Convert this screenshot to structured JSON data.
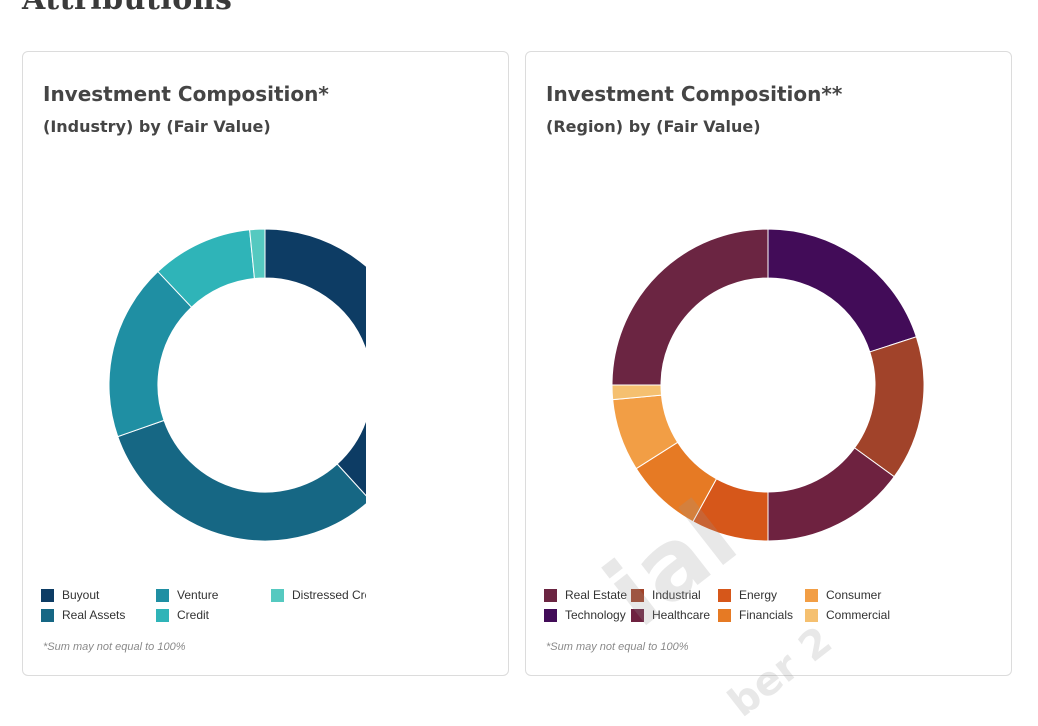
{
  "page": {
    "title": "Attributions"
  },
  "watermark": {
    "large": "ial",
    "small": "ber 2"
  },
  "chart_data": [
    {
      "type": "pie",
      "donut": true,
      "title": "Investment Composition*",
      "subtitle": "(Industry) by (Fair Value)",
      "footnote": "*Sum may not equal to 100%",
      "legend_position": "bottom",
      "series": [
        {
          "name": "Buyout",
          "value": 36.5,
          "color": "#0d3c64"
        },
        {
          "name": "Real Assets",
          "value": 30.0,
          "color": "#166784"
        },
        {
          "name": "Venture",
          "value": 17.5,
          "color": "#1f8fa3"
        },
        {
          "name": "Credit",
          "value": 10.0,
          "color": "#2fb4b8"
        },
        {
          "name": "Distressed Credit",
          "value": 1.5,
          "color": "#55c9c0"
        }
      ],
      "legend": [
        {
          "label": "Buyout",
          "color": "#0d3c64"
        },
        {
          "label": "Venture",
          "color": "#1f8fa3"
        },
        {
          "label": "Distressed Credit",
          "color": "#55c9c0"
        },
        {
          "label": "Real Assets",
          "color": "#166784"
        },
        {
          "label": "Credit",
          "color": "#2fb4b8"
        }
      ]
    },
    {
      "type": "pie",
      "donut": true,
      "title": "Investment Composition**",
      "subtitle": "(Region) by (Fair Value)",
      "footnote": "*Sum may not equal to 100%",
      "legend_position": "bottom",
      "series": [
        {
          "name": "Technology",
          "value": 20.0,
          "color": "#420c58"
        },
        {
          "name": "Industrial",
          "value": 15.0,
          "color": "#a1432a"
        },
        {
          "name": "Healthcare",
          "value": 15.0,
          "color": "#6e2240"
        },
        {
          "name": "Energy",
          "value": 8.0,
          "color": "#d6571a"
        },
        {
          "name": "Financials",
          "value": 8.0,
          "color": "#e67a24"
        },
        {
          "name": "Consumer",
          "value": 7.5,
          "color": "#f29e45"
        },
        {
          "name": "Commercial",
          "value": 1.5,
          "color": "#f5c070"
        },
        {
          "name": "Real Estate",
          "value": 25.0,
          "color": "#6b2542"
        }
      ],
      "legend": [
        {
          "label": "Real Estate",
          "color": "#6b2542"
        },
        {
          "label": "Industrial",
          "color": "#a1432a"
        },
        {
          "label": "Energy",
          "color": "#d6571a"
        },
        {
          "label": "Consumer",
          "color": "#f29e45"
        },
        {
          "label": "Technology",
          "color": "#420c58"
        },
        {
          "label": "Healthcare",
          "color": "#6e2240"
        },
        {
          "label": "Financials",
          "color": "#e67a24"
        },
        {
          "label": "Commercial",
          "color": "#f5c070"
        }
      ]
    }
  ]
}
